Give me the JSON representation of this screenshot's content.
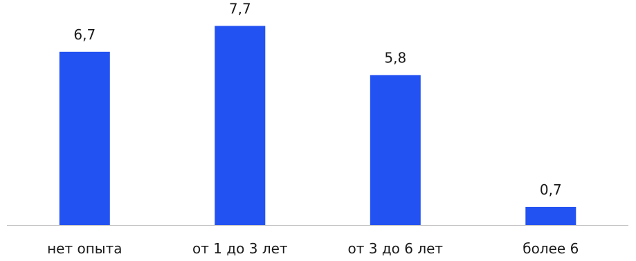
{
  "chart_data": {
    "type": "bar",
    "categories": [
      "нет опыта",
      "от 1 до 3 лет",
      "от 3 до 6 лет",
      "более 6"
    ],
    "values": [
      6.7,
      7.7,
      5.8,
      0.7
    ],
    "data_labels": [
      "6,7",
      "7,7",
      "5,8",
      "0,7"
    ],
    "title": "",
    "xlabel": "",
    "ylabel": "",
    "ylim": [
      0,
      8.3
    ],
    "grid": false,
    "legend": "none",
    "bar_color": "#2352F2",
    "axis_color": "#BFBFBF"
  }
}
